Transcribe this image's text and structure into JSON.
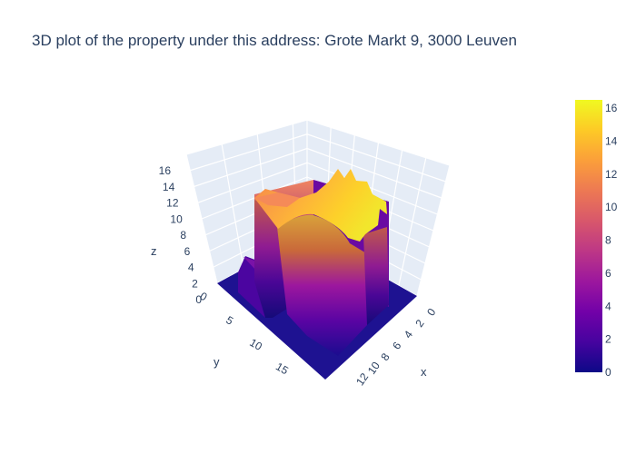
{
  "chart_data": {
    "type": "surface",
    "title": "3D plot of the property under this address: Grote Markt 9, 3000 Leuven",
    "axes": {
      "x": {
        "label": "x",
        "ticks": [
          0,
          2,
          4,
          6,
          8,
          10,
          12
        ]
      },
      "y": {
        "label": "y",
        "ticks": [
          0,
          5,
          10,
          15
        ]
      },
      "z": {
        "label": "z",
        "ticks": [
          0,
          2,
          4,
          6,
          8,
          10,
          12,
          14,
          16
        ]
      }
    },
    "colorbar": {
      "ticks": [
        0,
        2,
        4,
        6,
        8,
        10,
        12,
        14,
        16
      ],
      "range": [
        0,
        16.5
      ],
      "colorscale": [
        "#0d0887",
        "#46039f",
        "#7201a8",
        "#9c179e",
        "#bd3786",
        "#d8576b",
        "#ed7953",
        "#fb9f3a",
        "#fdca26",
        "#f0f921"
      ]
    },
    "grid": true,
    "surface_summary": {
      "footprint_x_range": [
        0,
        12
      ],
      "footprint_y_range": [
        0,
        17
      ],
      "ground_level": 0,
      "max_height": 16.5,
      "typical_roof_height": 12.5
    }
  }
}
